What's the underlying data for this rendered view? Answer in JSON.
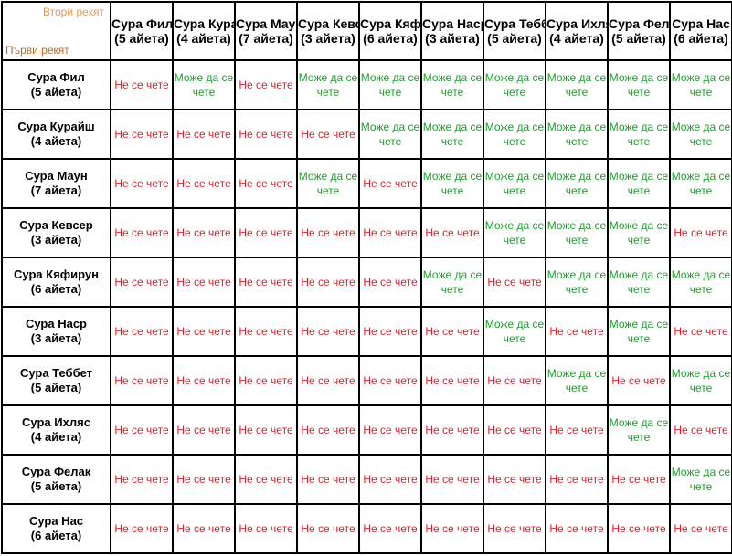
{
  "corner": {
    "top_label": "Втори рекят",
    "bottom_label": "Първи рекят"
  },
  "labels": {
    "yes": "Може да се чете",
    "no": "Не се чете"
  },
  "colors": {
    "yes": "#1aa32a",
    "no": "#e0202a",
    "corner_top": "#e09a58",
    "corner_bottom": "#b86a2a"
  },
  "columns": [
    {
      "name": "Сура Фил",
      "verses": "(5 айета)"
    },
    {
      "name": "Сура Курайш",
      "verses": "(4 айета)"
    },
    {
      "name": "Сура Маун",
      "verses": "(7 айета)"
    },
    {
      "name": "Сура Кевсер",
      "verses": "(3 айета)"
    },
    {
      "name": "Сура Кяфирун",
      "verses": "(6 айета)"
    },
    {
      "name": "Сура Наср",
      "verses": "(3 айета)"
    },
    {
      "name": "Сура Теббет",
      "verses": "(5 айета)"
    },
    {
      "name": "Сура Ихляс",
      "verses": "(4 айета)"
    },
    {
      "name": "Сура Фелак",
      "verses": "(5 айета)"
    },
    {
      "name": "Сура Нас",
      "verses": "(6 айета)"
    }
  ],
  "rows": [
    {
      "name": "Сура Фил",
      "verses": "(5 айета)",
      "cells": [
        "no",
        "yes",
        "no",
        "yes",
        "yes",
        "yes",
        "yes",
        "yes",
        "yes",
        "yes"
      ]
    },
    {
      "name": "Сура Курайш",
      "verses": "(4 айета)",
      "cells": [
        "no",
        "no",
        "no",
        "no",
        "yes",
        "yes",
        "yes",
        "yes",
        "yes",
        "yes"
      ]
    },
    {
      "name": "Сура Маун",
      "verses": "(7 айета)",
      "cells": [
        "no",
        "no",
        "no",
        "yes",
        "no",
        "yes",
        "yes",
        "yes",
        "yes",
        "yes"
      ]
    },
    {
      "name": "Сура Кевсер",
      "verses": "(3 айета)",
      "cells": [
        "no",
        "no",
        "no",
        "no",
        "no",
        "no",
        "yes",
        "yes",
        "yes",
        "no"
      ]
    },
    {
      "name": "Сура Кяфирун",
      "verses": "(6 айета)",
      "cells": [
        "no",
        "no",
        "no",
        "no",
        "no",
        "yes",
        "no",
        "yes",
        "yes",
        "yes"
      ]
    },
    {
      "name": "Сура Наср",
      "verses": "(3 айета)",
      "cells": [
        "no",
        "no",
        "no",
        "no",
        "no",
        "no",
        "yes",
        "no",
        "yes",
        "no"
      ]
    },
    {
      "name": "Сура Теббет",
      "verses": "(5 айета)",
      "cells": [
        "no",
        "no",
        "no",
        "no",
        "no",
        "no",
        "no",
        "yes",
        "no",
        "yes"
      ]
    },
    {
      "name": "Сура Ихляс",
      "verses": "(4 айета)",
      "cells": [
        "no",
        "no",
        "no",
        "no",
        "no",
        "no",
        "no",
        "no",
        "yes",
        "no"
      ]
    },
    {
      "name": "Сура Фелак",
      "verses": "(5 айета)",
      "cells": [
        "no",
        "no",
        "no",
        "no",
        "no",
        "no",
        "no",
        "no",
        "no",
        "yes"
      ]
    },
    {
      "name": "Сура Нас",
      "verses": "(6 айета)",
      "cells": [
        "no",
        "no",
        "no",
        "no",
        "no",
        "no",
        "no",
        "no",
        "no",
        "no"
      ]
    }
  ]
}
